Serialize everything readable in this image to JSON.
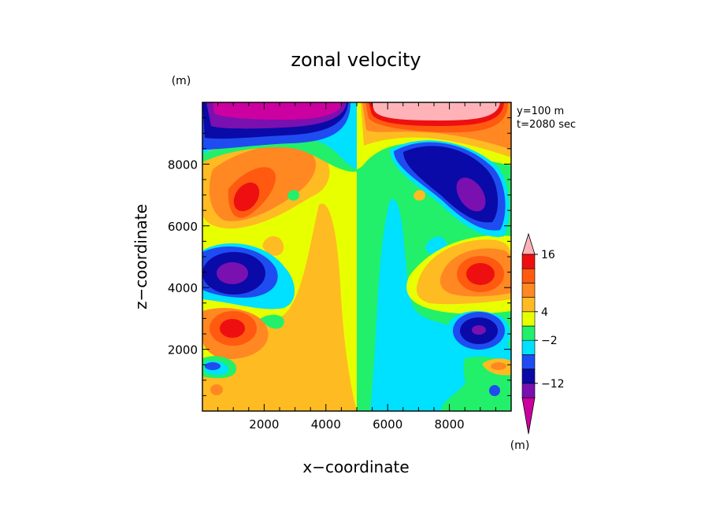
{
  "chart_data": {
    "type": "heatmap",
    "title": "zonal velocity",
    "xlabel": "x−coordinate",
    "ylabel": "z−coordinate",
    "x_unit": "(m)",
    "y_unit": "(m)",
    "xlim": [
      0,
      10000
    ],
    "ylim": [
      0,
      10000
    ],
    "xticks": [
      2000,
      4000,
      6000,
      8000
    ],
    "yticks": [
      2000,
      4000,
      6000,
      8000
    ],
    "xtick_labels": [
      "2000",
      "4000",
      "6000",
      "8000"
    ],
    "ytick_labels": [
      "2000",
      "4000",
      "6000",
      "8000"
    ],
    "annotations": [
      "y=100 m",
      "t=2080 sec"
    ],
    "colorbar": {
      "unit": "(m)",
      "label_values": [
        16,
        4,
        -2,
        -12
      ],
      "tick_labels": [
        "16",
        "4",
        "−2",
        "−12"
      ],
      "levels": [
        {
          "lo": -20,
          "hi": -16,
          "color": "#cc00a0"
        },
        {
          "lo": -16,
          "hi": -12,
          "color": "#7a10b0"
        },
        {
          "lo": -12,
          "hi": -8,
          "color": "#0a0aa8"
        },
        {
          "lo": -8,
          "hi": -4,
          "color": "#1f4cf0"
        },
        {
          "lo": -4,
          "hi": -2,
          "color": "#00e0ff"
        },
        {
          "lo": -2,
          "hi": 0,
          "color": "#22f06a"
        },
        {
          "lo": 0,
          "hi": 4,
          "color": "#e8ff00"
        },
        {
          "lo": 4,
          "hi": 6,
          "color": "#ffbb22"
        },
        {
          "lo": 6,
          "hi": 9,
          "color": "#ff8822"
        },
        {
          "lo": 9,
          "hi": 12,
          "color": "#ff5a10"
        },
        {
          "lo": 12,
          "hi": 16,
          "color": "#ee1010"
        },
        {
          "lo": 16,
          "hi": 20,
          "color": "#ffb3b8"
        }
      ]
    },
    "approx_field": {
      "description_values": "approximate velocity extrema (m/s) read from contour colors",
      "extrema": [
        {
          "x": 1800,
          "z": 6900,
          "value": 13
        },
        {
          "x": 8300,
          "z": 6700,
          "value": -15
        },
        {
          "x": 1100,
          "z": 4500,
          "value": -15
        },
        {
          "x": 8900,
          "z": 4500,
          "value": 13
        },
        {
          "x": 1000,
          "z": 2800,
          "value": 13
        },
        {
          "x": 9000,
          "z": 2800,
          "value": -13
        },
        {
          "x": 2500,
          "z": 9700,
          "value": -18
        },
        {
          "x": 7400,
          "z": 9700,
          "value": 18
        }
      ]
    }
  }
}
